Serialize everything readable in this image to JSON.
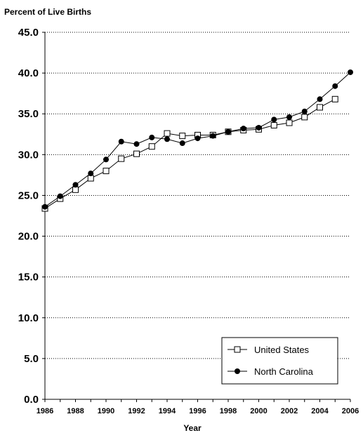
{
  "chart_data": {
    "type": "line",
    "ylabel": "Percent of Live Births",
    "xlabel": "Year",
    "xlim": [
      1986,
      2006
    ],
    "ylim": [
      0,
      45
    ],
    "y_ticks": [
      "0.0",
      "5.0",
      "10.0",
      "15.0",
      "20.0",
      "25.0",
      "30.0",
      "35.0",
      "40.0",
      "45.0"
    ],
    "x_ticks": [
      "1986",
      "1988",
      "1990",
      "1992",
      "1994",
      "1996",
      "1998",
      "2000",
      "2002",
      "2004",
      "2006"
    ],
    "grid": "horizontal dotted",
    "legend_position": "bottom-right",
    "series": [
      {
        "name": "United States",
        "marker": "open-square",
        "color": "#000000",
        "x": [
          1986,
          1987,
          1988,
          1989,
          1990,
          1991,
          1992,
          1993,
          1994,
          1995,
          1996,
          1997,
          1998,
          1999,
          2000,
          2001,
          2002,
          2003,
          2004,
          2005
        ],
        "values": [
          23.4,
          24.6,
          25.7,
          27.1,
          28.0,
          29.5,
          30.1,
          31.0,
          32.6,
          32.3,
          32.4,
          32.4,
          32.8,
          33.0,
          33.1,
          33.6,
          33.9,
          34.6,
          35.8,
          36.8
        ]
      },
      {
        "name": "North Carolina",
        "marker": "filled-circle",
        "color": "#000000",
        "x": [
          1986,
          1987,
          1988,
          1989,
          1990,
          1991,
          1992,
          1993,
          1994,
          1995,
          1996,
          1997,
          1998,
          1999,
          2000,
          2001,
          2002,
          2003,
          2004,
          2005,
          2006
        ],
        "values": [
          23.6,
          24.9,
          26.3,
          27.7,
          29.4,
          31.6,
          31.3,
          32.1,
          31.9,
          31.4,
          32.0,
          32.3,
          32.8,
          33.2,
          33.3,
          34.3,
          34.6,
          35.3,
          36.8,
          38.4,
          40.1
        ]
      }
    ]
  }
}
